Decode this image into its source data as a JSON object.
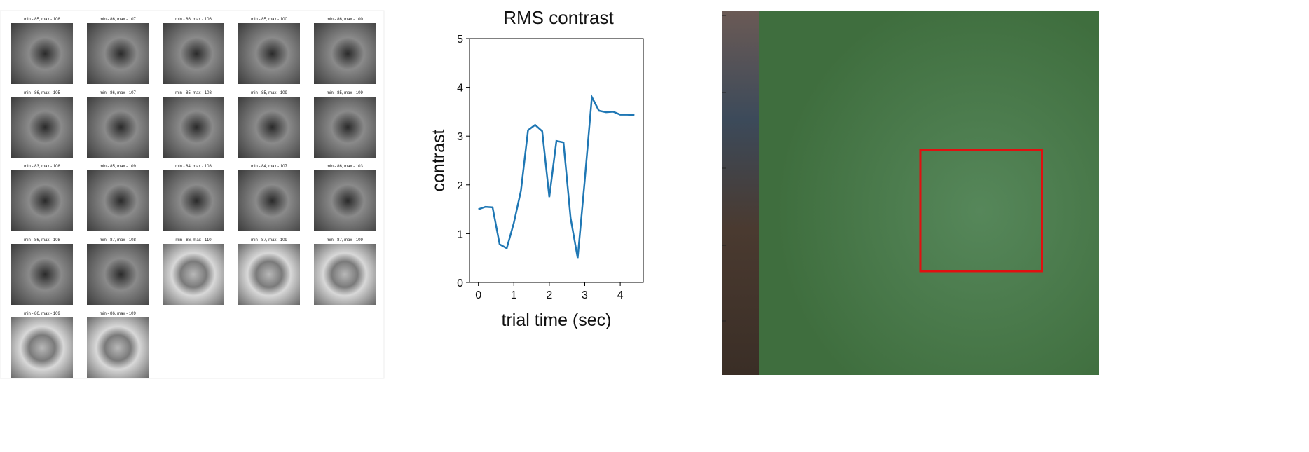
{
  "thumbnails": {
    "titles": [
      "min - 85, max - 108",
      "min - 86, max - 107",
      "min - 86, max - 106",
      "min - 85, max - 100",
      "min - 86, max - 100",
      "min - 86, max - 105",
      "min - 86, max - 107",
      "min - 85, max - 108",
      "min - 85, max - 109",
      "min - 85, max - 109",
      "min - 83, max - 108",
      "min - 85, max - 109",
      "min - 84, max - 108",
      "min - 84, max - 107",
      "min - 86, max - 103",
      "min - 86, max - 108",
      "min - 87, max - 108",
      "min - 86, max - 110",
      "min - 87, max - 109",
      "min - 87, max - 109",
      "min - 86, max - 109",
      "min - 86, max - 109"
    ]
  },
  "chart_data": {
    "type": "line",
    "title": "RMS contrast",
    "x_label": "trial time (sec)",
    "y_label": "contrast",
    "x": [
      0,
      0.2,
      0.4,
      0.6,
      0.8,
      1.0,
      1.2,
      1.4,
      1.6,
      1.8,
      2.0,
      2.2,
      2.4,
      2.6,
      2.8,
      3.0,
      3.2,
      3.4,
      3.6,
      3.8,
      4.0,
      4.2,
      4.4
    ],
    "series": [
      {
        "name": "RMS contrast",
        "color": "#1f77b4",
        "values": [
          1.5,
          1.55,
          1.54,
          0.78,
          0.7,
          1.22,
          1.88,
          3.12,
          3.23,
          3.1,
          1.75,
          2.9,
          2.87,
          1.32,
          0.5,
          2.1,
          3.8,
          3.52,
          3.49,
          3.5,
          3.44,
          3.44,
          3.43
        ]
      }
    ],
    "xlim": [
      -0.25,
      4.65
    ],
    "ylim": [
      0,
      5
    ],
    "xticks": [
      0,
      1,
      2,
      3,
      4
    ],
    "yticks": [
      0,
      1,
      2,
      3,
      4,
      5
    ]
  }
}
